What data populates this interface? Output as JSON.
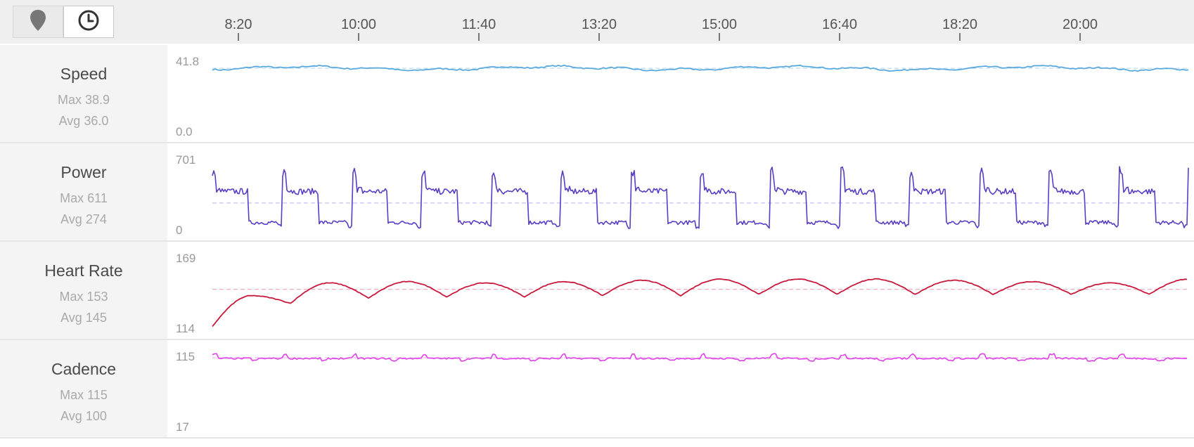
{
  "toolbar": {
    "map_icon": "map-pin-icon",
    "time_icon": "clock-icon"
  },
  "time_axis": {
    "ticks": [
      "8:20",
      "10:00",
      "11:40",
      "13:20",
      "15:00",
      "16:40",
      "18:20",
      "20:00"
    ]
  },
  "metrics": {
    "speed": {
      "name": "Speed",
      "max_text": "Max 38.9",
      "avg_text": "Avg 36.0",
      "ymax_label": "41.8",
      "ymin_label": "0.0"
    },
    "power": {
      "name": "Power",
      "max_text": "Max 611",
      "avg_text": "Avg 274",
      "ymax_label": "701",
      "ymin_label": "0"
    },
    "hr": {
      "name": "Heart Rate",
      "max_text": "Max 153",
      "avg_text": "Avg 145",
      "ymax_label": "169",
      "ymin_label": "114"
    },
    "cadence": {
      "name": "Cadence",
      "max_text": "Max 115",
      "avg_text": "Avg 100",
      "ymax_label": "115",
      "ymin_label": "17"
    }
  },
  "colors": {
    "speed": "#5aa9de",
    "power": "#5b3cc4",
    "hr": "#c8183c",
    "cadence": "#e040e8"
  },
  "chart_data": [
    {
      "type": "line",
      "series": [
        {
          "name": "Speed",
          "avg": 36.0,
          "max": 38.9
        }
      ],
      "ylim": [
        0.0,
        41.8
      ],
      "x_ticks": [
        "8:20",
        "10:00",
        "11:40",
        "13:20",
        "15:00",
        "16:40",
        "18:20",
        "20:00"
      ],
      "avg_line": 36.0
    },
    {
      "type": "line",
      "series": [
        {
          "name": "Power",
          "avg": 274,
          "max": 611,
          "interval_count": 14,
          "high_level": 390,
          "low_level": 80
        }
      ],
      "ylim": [
        0,
        701
      ],
      "avg_line": 274
    },
    {
      "type": "line",
      "series": [
        {
          "name": "Heart Rate",
          "avg": 145,
          "max": 153,
          "start": 116,
          "peaks": [
            140,
            150,
            151,
            150,
            151,
            152,
            153,
            153,
            153,
            152,
            151,
            150,
            153
          ],
          "troughs": [
            134,
            138,
            139,
            139,
            140,
            140,
            141,
            141,
            141,
            141,
            141,
            141
          ]
        }
      ],
      "ylim": [
        114,
        169
      ],
      "avg_line": 145
    },
    {
      "type": "line",
      "series": [
        {
          "name": "Cadence",
          "avg": 100,
          "max": 115
        }
      ],
      "ylim": [
        17,
        115
      ],
      "avg_line": 100
    }
  ]
}
